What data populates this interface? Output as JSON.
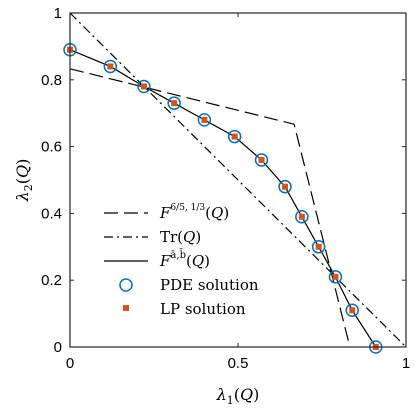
{
  "chart_data": {
    "type": "line",
    "title": "",
    "xlabel": "λ₁(Q)",
    "ylabel": "λ₂(Q)",
    "xlim": [
      0,
      1
    ],
    "ylim": [
      0,
      1
    ],
    "xticks": [
      "0",
      "0.5",
      "1"
    ],
    "yticks": [
      "0",
      "0.2",
      "0.4",
      "0.6",
      "0.8",
      "1"
    ],
    "grid": false,
    "legend_position": "bottom-left",
    "series": [
      {
        "name": "F^{6/5,1/3}(Q)",
        "style": "dashed",
        "color": "#000000",
        "x": [
          0.0,
          0.667,
          0.833
        ],
        "y": [
          0.833,
          0.667,
          0.0
        ]
      },
      {
        "name": "Tr(Q)",
        "style": "dashdot",
        "color": "#000000",
        "x": [
          0.0,
          1.0
        ],
        "y": [
          1.0,
          0.0
        ]
      },
      {
        "name": "F^{ā,b̄}(Q)",
        "style": "solid",
        "color": "#000000",
        "x": [
          0.0,
          0.12,
          0.22,
          0.31,
          0.4,
          0.49,
          0.57,
          0.64,
          0.69,
          0.74,
          0.79,
          0.84,
          0.91
        ],
        "y": [
          0.89,
          0.84,
          0.78,
          0.73,
          0.68,
          0.63,
          0.56,
          0.48,
          0.39,
          0.3,
          0.21,
          0.11,
          0.0
        ]
      },
      {
        "name": "PDE solution",
        "style": "marker-circle",
        "color": "#0072BD",
        "x": [
          0.0,
          0.12,
          0.22,
          0.31,
          0.4,
          0.49,
          0.57,
          0.64,
          0.69,
          0.74,
          0.79,
          0.84,
          0.91
        ],
        "y": [
          0.89,
          0.84,
          0.78,
          0.73,
          0.68,
          0.63,
          0.56,
          0.48,
          0.39,
          0.3,
          0.21,
          0.11,
          0.0
        ]
      },
      {
        "name": "LP solution",
        "style": "marker-square",
        "color": "#D95319",
        "x": [
          0.0,
          0.12,
          0.22,
          0.31,
          0.4,
          0.49,
          0.57,
          0.64,
          0.69,
          0.74,
          0.79,
          0.84,
          0.91
        ],
        "y": [
          0.89,
          0.84,
          0.78,
          0.73,
          0.68,
          0.63,
          0.56,
          0.48,
          0.39,
          0.3,
          0.21,
          0.11,
          0.0
        ]
      }
    ]
  }
}
